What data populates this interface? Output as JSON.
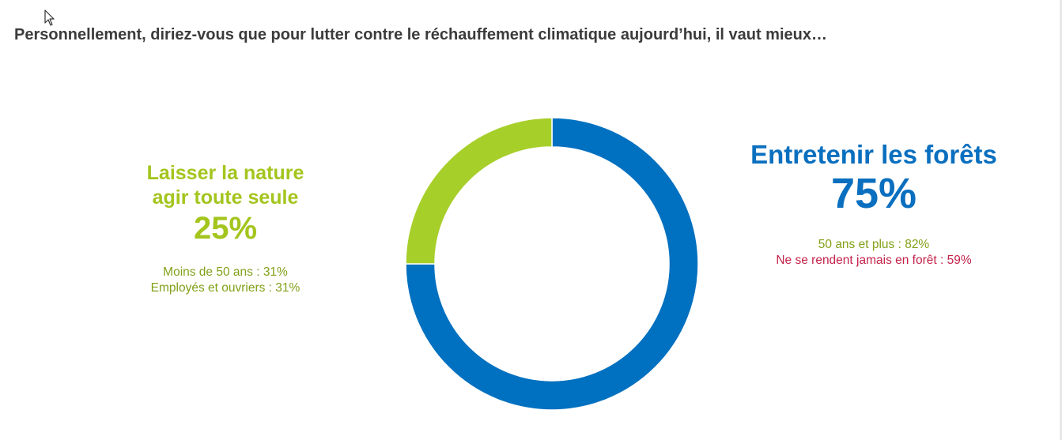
{
  "title": "Personnellement, diriez-vous que pour lutter contre le réchauffement climatique aujourd’hui, il vaut mieux…",
  "colors": {
    "green": "#a7cf2a",
    "blue": "#0070c0",
    "note_red": "#c3234a"
  },
  "chart_data": {
    "type": "pie",
    "donut": true,
    "title": "Personnellement, diriez-vous que pour lutter contre le réchauffement climatique aujourd’hui, il vaut mieux…",
    "categories": [
      "Entretenir les forêts",
      "Laisser la nature agir toute seule"
    ],
    "values": [
      75,
      25
    ],
    "value_labels": [
      "75%",
      "25%"
    ],
    "colors": [
      "#0070c0",
      "#a7cf2a"
    ],
    "annotations": {
      "Entretenir les forêts": [
        "50 ans et plus : 82%",
        "Ne se rendent jamais en forêt : 59%"
      ],
      "Laisser la nature agir toute seule": [
        "Moins de 50 ans : 31%",
        "Employés et ouvriers : 31%"
      ]
    }
  },
  "left": {
    "name_line1": "Laisser la nature",
    "name_line2": "agir toute seule",
    "pct": "25%",
    "note1": "Moins de 50 ans : 31%",
    "note2": "Employés et ouvriers : 31%"
  },
  "right": {
    "name": "Entretenir les forêts",
    "pct": "75%",
    "note1": "50 ans et plus : 82%",
    "note2": "Ne se rendent jamais en forêt : 59%"
  }
}
